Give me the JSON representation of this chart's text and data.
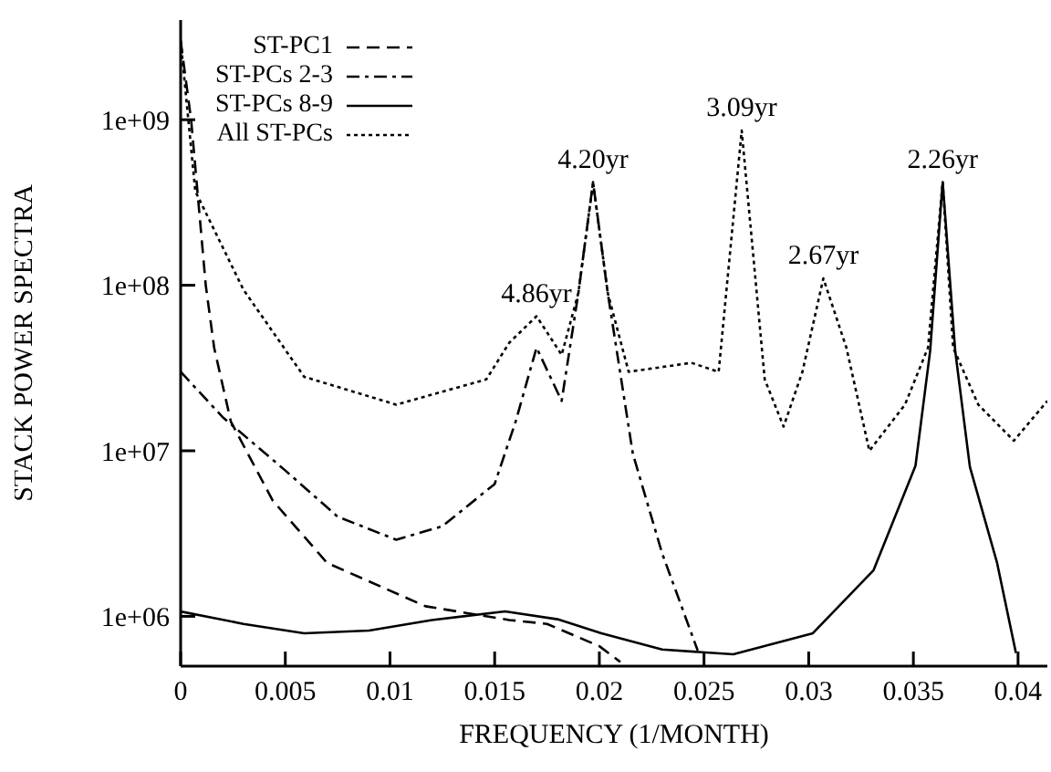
{
  "chart_data": {
    "type": "line",
    "xlabel": "FREQUENCY (1/MONTH)",
    "ylabel": "STACK POWER SPECTRA",
    "log": "y",
    "grid": false,
    "legend": "top left",
    "marker": "none",
    "xlim": [
      0,
      0.0414
    ],
    "xticks": [
      0,
      0.005,
      0.01,
      0.015,
      0.02,
      0.025,
      0.03,
      0.035,
      0.04
    ],
    "ylim": [
      500000,
      4000000000
    ],
    "yticks": [
      {
        "value": 1000000,
        "label": "1e+06"
      },
      {
        "value": 10000000,
        "label": "1e+07"
      },
      {
        "value": 100000000,
        "label": "1e+08"
      },
      {
        "value": 1000000000,
        "label": "1e+09"
      }
    ],
    "series": [
      {
        "name": "ST-PC1",
        "color": "#000000",
        "line_style": "dashed",
        "x": [
          0,
          0.0005,
          0.0012,
          0.0016,
          0.0024,
          0.0044,
          0.007,
          0.0117,
          0.0157,
          0.0175,
          0.02,
          0.021
        ],
        "values": [
          3000000000,
          1000000000,
          100000000,
          42000000,
          15000000,
          5000000,
          2100000,
          1150000,
          950000,
          900000,
          660000,
          530000
        ]
      },
      {
        "name": "ST-PCs 2-3",
        "color": "#000000",
        "line_style": "dashdot",
        "x": [
          0,
          0.002,
          0.005,
          0.0075,
          0.0103,
          0.0125,
          0.015,
          0.016,
          0.017,
          0.0182,
          0.019,
          0.0197,
          0.0204,
          0.0216,
          0.023,
          0.0247
        ],
        "values": [
          30000000,
          16000000,
          7600000,
          4000000,
          2900000,
          3500000,
          6300000,
          15000000,
          42000000,
          20000000,
          90000000,
          420000000,
          90000000,
          9600000,
          2400000,
          620000
        ]
      },
      {
        "name": "ST-PCs 8-9",
        "color": "#000000",
        "line_style": "solid",
        "x": [
          0,
          0.003,
          0.0059,
          0.009,
          0.012,
          0.0155,
          0.018,
          0.0201,
          0.023,
          0.0264,
          0.0302,
          0.0331,
          0.0351,
          0.0358,
          0.0364,
          0.037,
          0.0377,
          0.039,
          0.0399
        ],
        "values": [
          1070000,
          900000,
          790000,
          820000,
          950000,
          1070000,
          960000,
          790000,
          630000,
          590000,
          790000,
          1900000,
          8100000,
          40000000,
          420000000,
          40000000,
          8000000,
          2100000,
          600000
        ]
      },
      {
        "name": "All ST-PCs",
        "color": "#000000",
        "line_style": "dotted",
        "x": [
          0,
          0.0007,
          0.003,
          0.0059,
          0.0103,
          0.0146,
          0.0157,
          0.017,
          0.0182,
          0.019,
          0.0197,
          0.0204,
          0.0214,
          0.0244,
          0.0257,
          0.0268,
          0.0279,
          0.0288,
          0.0297,
          0.0307,
          0.0318,
          0.0329,
          0.0346,
          0.0357,
          0.0364,
          0.0369,
          0.0381,
          0.0398,
          0.0414
        ],
        "values": [
          3000000000,
          370000000,
          94000000,
          28000000,
          19000000,
          27000000,
          45000000,
          65000000,
          38000000,
          90000000,
          420000000,
          90000000,
          30000000,
          34000000,
          30000000,
          860000000,
          27000000,
          14000000,
          30000000,
          110000000,
          42000000,
          10000000,
          19000000,
          42000000,
          420000000,
          42000000,
          19000000,
          11500000,
          20000000
        ]
      }
    ],
    "annotations": [
      {
        "text": "4.86yr",
        "x": 0.017,
        "y": 65000000
      },
      {
        "text": "4.20yr",
        "x": 0.0197,
        "y": 420000000
      },
      {
        "text": "3.09yr",
        "x": 0.0268,
        "y": 860000000
      },
      {
        "text": "2.67yr",
        "x": 0.0307,
        "y": 110000000
      },
      {
        "text": "2.26yr",
        "x": 0.0364,
        "y": 420000000
      }
    ]
  }
}
